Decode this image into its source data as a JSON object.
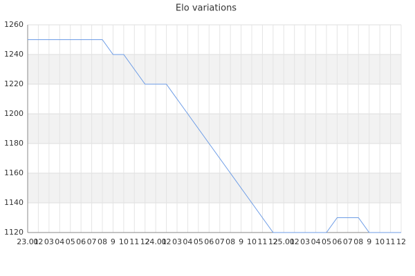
{
  "chart_data": {
    "type": "line",
    "title": "Elo variations",
    "categories": [
      "23.01",
      "02",
      "03",
      "04",
      "05",
      "06",
      "07",
      "08",
      "9",
      "10",
      "11",
      "12",
      "24.01",
      "02",
      "03",
      "04",
      "05",
      "06",
      "07",
      "08",
      "9",
      "10",
      "11",
      "12",
      "25.01",
      "02",
      "03",
      "04",
      "05",
      "06",
      "07",
      "08",
      "9",
      "10",
      "11",
      "12"
    ],
    "series": [
      {
        "name": "Elo",
        "color": "#6b9be6",
        "values": [
          1250,
          1250,
          1250,
          1250,
          1250,
          1250,
          1250,
          1250,
          1240,
          1240,
          1230,
          1220,
          1220,
          1220,
          1210,
          1200,
          1190,
          1180,
          1170,
          1160,
          1150,
          1140,
          1130,
          1120,
          1120,
          1120,
          1120,
          1120,
          1120,
          1130,
          1130,
          1130,
          1120,
          1120,
          1120,
          1120
        ]
      }
    ],
    "ylim": [
      1120,
      1260
    ],
    "yticks": [
      1120,
      1140,
      1160,
      1180,
      1200,
      1220,
      1240,
      1260
    ],
    "grid": true,
    "band_color": "#f2f2f2"
  }
}
